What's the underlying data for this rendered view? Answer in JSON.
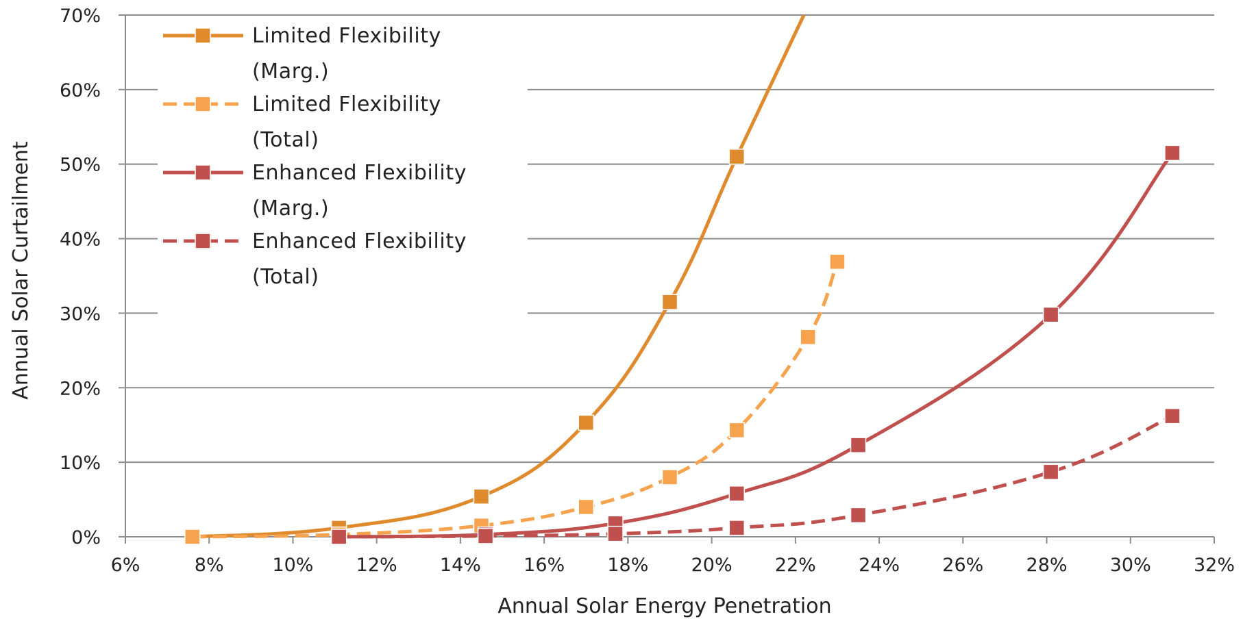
{
  "chart_data": {
    "type": "line",
    "title": "",
    "xlabel": "Annual Solar Energy Penetration",
    "ylabel": "Annual Solar Curtailment",
    "xlim": [
      6,
      32
    ],
    "ylim": [
      0,
      70
    ],
    "x_ticks": [
      6,
      8,
      10,
      12,
      14,
      16,
      18,
      20,
      22,
      24,
      26,
      28,
      30,
      32
    ],
    "x_tick_labels": [
      "6%",
      "8%",
      "10%",
      "12%",
      "14%",
      "16%",
      "18%",
      "20%",
      "22%",
      "24%",
      "26%",
      "28%",
      "30%",
      "32%"
    ],
    "y_ticks": [
      0,
      10,
      20,
      30,
      40,
      50,
      60,
      70
    ],
    "y_tick_labels": [
      "0%",
      "10%",
      "20%",
      "30%",
      "40%",
      "50%",
      "60%",
      "70%"
    ],
    "grid": "horizontal",
    "legend_position": "top-left",
    "series": [
      {
        "name_lines": [
          "Limited Flexibility",
          "(Marg.)"
        ],
        "color": "#E08A2E",
        "dashed": false,
        "x": [
          7.6,
          11.1,
          14.5,
          17.0,
          19.0,
          20.6,
          22.2
        ],
        "y": [
          0.0,
          1.2,
          5.4,
          15.3,
          31.5,
          51.0,
          70.0
        ],
        "markers": [
          true,
          true,
          true,
          true,
          true,
          true,
          false
        ]
      },
      {
        "name_lines": [
          "Limited Flexibility",
          "(Total)"
        ],
        "color": "#F7A24C",
        "dashed": true,
        "x": [
          7.6,
          11.1,
          14.5,
          17.0,
          19.0,
          20.6,
          22.3,
          23.0
        ],
        "y": [
          0.0,
          0.3,
          1.5,
          4.0,
          8.0,
          14.3,
          26.8,
          36.9
        ],
        "markers": [
          true,
          true,
          true,
          true,
          true,
          true,
          true,
          true
        ]
      },
      {
        "name_lines": [
          "Enhanced Flexibility",
          "(Marg.)"
        ],
        "color": "#C0504D",
        "dashed": false,
        "x": [
          11.1,
          14.6,
          17.7,
          20.6,
          23.5,
          28.1,
          31.0
        ],
        "y": [
          0.0,
          0.3,
          1.8,
          5.8,
          12.3,
          29.8,
          51.5
        ],
        "markers": [
          true,
          true,
          true,
          true,
          true,
          true,
          true
        ]
      },
      {
        "name_lines": [
          "Enhanced Flexibility",
          "(Total)"
        ],
        "color": "#C0504D",
        "dashed": true,
        "x": [
          11.1,
          14.6,
          17.7,
          20.6,
          23.5,
          28.1,
          31.0
        ],
        "y": [
          0.0,
          0.1,
          0.4,
          1.2,
          2.9,
          8.7,
          16.2
        ],
        "markers": [
          true,
          true,
          true,
          true,
          true,
          true,
          true
        ]
      }
    ]
  }
}
